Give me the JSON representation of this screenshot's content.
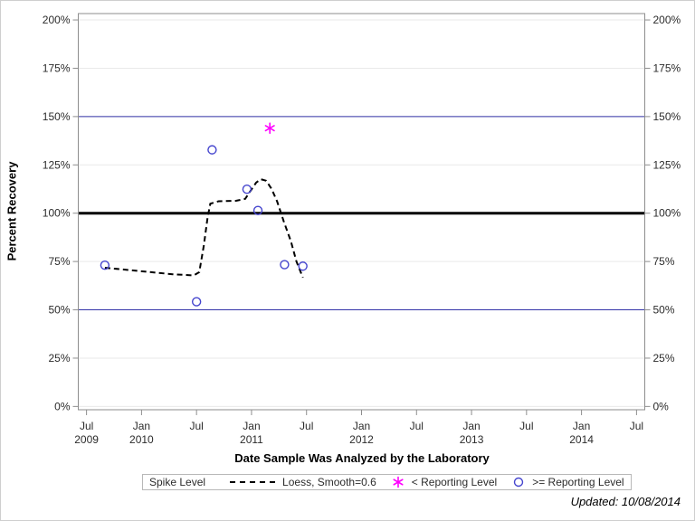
{
  "footer": {
    "updated_text": "Updated: 10/08/2014"
  },
  "legend": {
    "title": "Spike Level",
    "items": [
      {
        "label": "Loess, Smooth=0.6",
        "marker": "dashed-line",
        "color": "#000000"
      },
      {
        "label": "< Reporting Level",
        "marker": "asterisk",
        "color": "#FF00FF"
      },
      {
        "label": ">= Reporting Level",
        "marker": "circle",
        "color": "#4545CE"
      }
    ]
  },
  "chart_data": {
    "type": "scatter",
    "title": "",
    "xlabel": "Date Sample Was Analyzed by the Laboratory",
    "ylabel": "Percent Recovery",
    "x_unit": "months since Jul 2009",
    "xlim_months": [
      0,
      60
    ],
    "ylim": [
      0,
      200
    ],
    "grid": "horizontal-light-gray",
    "legend_position": "bottom",
    "x_ticks": [
      {
        "m": 0,
        "line1": "Jul",
        "line2": "2009"
      },
      {
        "m": 6,
        "line1": "Jan",
        "line2": "2010"
      },
      {
        "m": 12,
        "line1": "Jul",
        "line2": ""
      },
      {
        "m": 18,
        "line1": "Jan",
        "line2": "2011"
      },
      {
        "m": 24,
        "line1": "Jul",
        "line2": ""
      },
      {
        "m": 30,
        "line1": "Jan",
        "line2": "2012"
      },
      {
        "m": 36,
        "line1": "Jul",
        "line2": ""
      },
      {
        "m": 42,
        "line1": "Jan",
        "line2": "2013"
      },
      {
        "m": 48,
        "line1": "Jul",
        "line2": ""
      },
      {
        "m": 54,
        "line1": "Jan",
        "line2": "2014"
      },
      {
        "m": 60,
        "line1": "Jul",
        "line2": ""
      }
    ],
    "y_ticks": [
      {
        "value": 0,
        "label": "0%"
      },
      {
        "value": 25,
        "label": "25%"
      },
      {
        "value": 50,
        "label": "50%"
      },
      {
        "value": 75,
        "label": "75%"
      },
      {
        "value": 100,
        "label": "100%"
      },
      {
        "value": 125,
        "label": "125%"
      },
      {
        "value": 150,
        "label": "150%"
      },
      {
        "value": 175,
        "label": "175%"
      },
      {
        "value": 200,
        "label": "200%"
      }
    ],
    "reference_lines": [
      {
        "y": 50,
        "color": "#3333A8",
        "width": 1
      },
      {
        "y": 100,
        "color": "#000000",
        "width": 3
      },
      {
        "y": 150,
        "color": "#3333A8",
        "width": 1
      }
    ],
    "series": [
      {
        "name": "Loess, Smooth=0.6",
        "type": "line",
        "style": "dashed",
        "color": "#000000",
        "points": [
          [
            2.0,
            71.8
          ],
          [
            5.5,
            70.2
          ],
          [
            9.4,
            68.4
          ],
          [
            11.7,
            67.8
          ],
          [
            12.3,
            69.5
          ],
          [
            12.8,
            83.5
          ],
          [
            13.2,
            97.5
          ],
          [
            13.5,
            104.9
          ],
          [
            14.4,
            106.2
          ],
          [
            16.3,
            106.4
          ],
          [
            17.3,
            107.4
          ],
          [
            17.9,
            111.6
          ],
          [
            18.5,
            115.8
          ],
          [
            19.0,
            117.6
          ],
          [
            19.6,
            116.8
          ],
          [
            20.2,
            112.5
          ],
          [
            20.8,
            106.0
          ],
          [
            21.5,
            96.0
          ],
          [
            22.3,
            85.4
          ],
          [
            22.9,
            75.0
          ],
          [
            23.6,
            66.7
          ]
        ]
      },
      {
        "name": "< Reporting Level",
        "type": "scatter",
        "marker": "asterisk",
        "color": "#FF00FF",
        "approx_dates": [
          "2011-03"
        ],
        "points": [
          [
            20.0,
            144.0
          ]
        ]
      },
      {
        "name": ">= Reporting Level",
        "type": "scatter",
        "marker": "circle",
        "color": "#4545CE",
        "approx_dates": [
          "2009-09",
          "2010-07",
          "2010-08",
          "2010-12",
          "2011-01",
          "2011-04",
          "2011-06"
        ],
        "points": [
          [
            2.0,
            73.1
          ],
          [
            12.0,
            54.2
          ],
          [
            13.7,
            132.8
          ],
          [
            17.5,
            112.4
          ],
          [
            18.7,
            101.4
          ],
          [
            21.6,
            73.4
          ],
          [
            23.6,
            72.6
          ]
        ]
      }
    ],
    "style_colors": {
      "gridline": "#E9E9E9",
      "plot_border": "#8E8E8E",
      "tick_text": "#2B2B2B"
    }
  }
}
